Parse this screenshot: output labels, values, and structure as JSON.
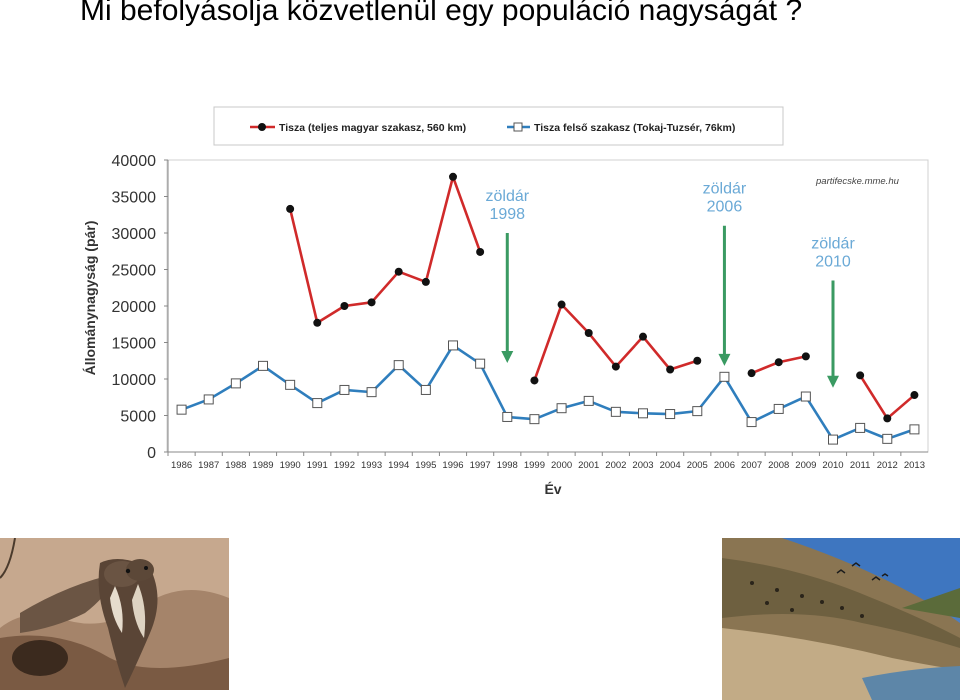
{
  "page": {
    "title": "Mi befolyásolja közvetlenül egy populáció nagyságát ?"
  },
  "chart_data": {
    "type": "line",
    "xlabel": "Év",
    "ylabel": "Állománynagyság (pár)",
    "ylim": [
      0,
      40000
    ],
    "yticks": [
      0,
      5000,
      10000,
      15000,
      20000,
      25000,
      30000,
      35000,
      40000
    ],
    "categories": [
      "1986",
      "1987",
      "1988",
      "1989",
      "1990",
      "1991",
      "1992",
      "1993",
      "1994",
      "1995",
      "1996",
      "1997",
      "1998",
      "1999",
      "2000",
      "2001",
      "2002",
      "2003",
      "2004",
      "2005",
      "2006",
      "2007",
      "2008",
      "2009",
      "2010",
      "2011",
      "2012",
      "2013"
    ],
    "grid": false,
    "legend_position": "top",
    "watermark": "partifecske.mme.hu",
    "series": [
      {
        "name": "Tisza (teljes magyar szakasz, 560 km)",
        "color": "#d02a2a",
        "marker": "filled-circle",
        "values": [
          null,
          null,
          null,
          null,
          33300,
          17700,
          20000,
          20500,
          24700,
          23300,
          37700,
          27400,
          null,
          9800,
          20200,
          16300,
          11700,
          15800,
          11300,
          12500,
          null,
          10800,
          12300,
          13100,
          null,
          10500,
          4600,
          7800
        ]
      },
      {
        "name": "Tisza felső szakasz (Tokaj-Tuzsér, 76km)",
        "color": "#2f7ebd",
        "marker": "open-square",
        "values": [
          5800,
          7200,
          9400,
          11800,
          9200,
          6700,
          8500,
          8200,
          11900,
          8500,
          14600,
          12100,
          4800,
          4500,
          6000,
          7000,
          5500,
          5300,
          5200,
          5600,
          10300,
          4100,
          5900,
          7600,
          1700,
          3300,
          1800,
          3100
        ]
      }
    ],
    "annotations": [
      {
        "label_line1": "zöldár",
        "label_line2": "1998",
        "year": "1998",
        "arrow_from": 30000,
        "arrow_to": 12200
      },
      {
        "label_line1": "zöldár",
        "label_line2": "2006",
        "year": "2006",
        "arrow_from": 31000,
        "arrow_to": 11800
      },
      {
        "label_line1": "zöldár",
        "label_line2": "2010",
        "year": "2010",
        "arrow_from": 23500,
        "arrow_to": 8800
      }
    ],
    "annotation_color": "#3a9a62"
  },
  "photos": {
    "left": {
      "subject": "sand martins at burrow"
    },
    "right": {
      "subject": "river bank colony"
    }
  }
}
